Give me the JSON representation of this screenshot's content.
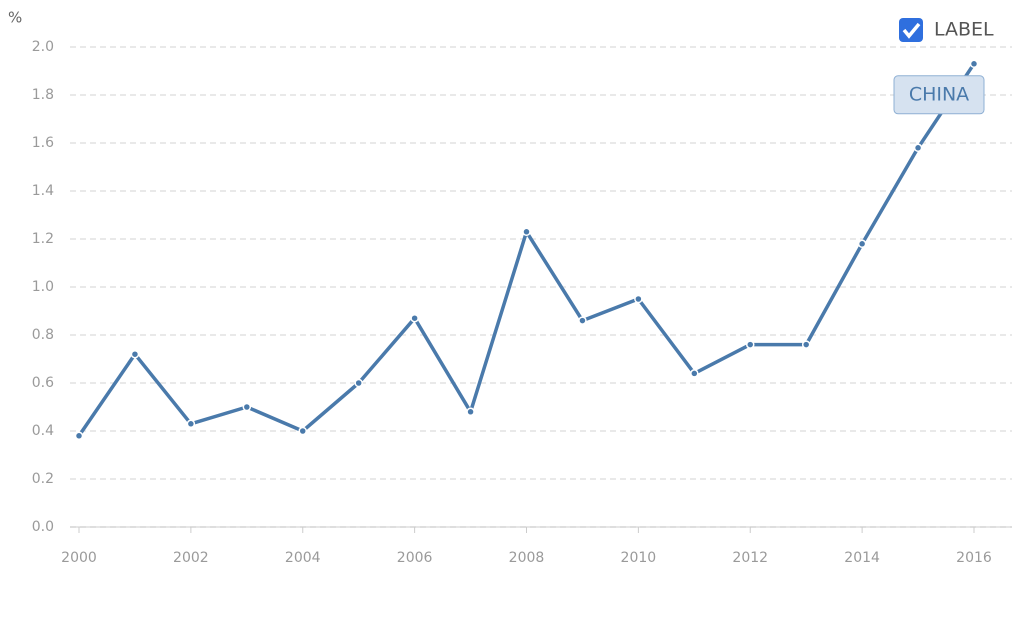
{
  "chart_data": {
    "type": "line",
    "y_label": "%",
    "legend_label": "LABEL",
    "x": [
      2000,
      2001,
      2002,
      2003,
      2004,
      2005,
      2006,
      2007,
      2008,
      2009,
      2010,
      2011,
      2012,
      2013,
      2014,
      2015,
      2016
    ],
    "series": [
      {
        "name": "CHINA",
        "color": "#4a7aab",
        "values": [
          0.38,
          0.72,
          0.43,
          0.5,
          0.4,
          0.6,
          0.87,
          0.48,
          1.23,
          0.86,
          0.95,
          0.64,
          0.76,
          0.76,
          1.18,
          1.58,
          1.93
        ]
      }
    ],
    "xlim": [
      2000,
      2016
    ],
    "xticks": [
      2000,
      2002,
      2004,
      2006,
      2008,
      2010,
      2012,
      2014,
      2016
    ],
    "ylim": [
      0,
      2
    ],
    "yticks": [
      {
        "value": 0,
        "label": "0.0"
      },
      0.2,
      0.4,
      0.6,
      0.8,
      {
        "value": 1,
        "label": "1.0"
      },
      1.2,
      1.4,
      1.6,
      1.8,
      {
        "value": 2,
        "label": "2.0"
      }
    ],
    "grid": true
  }
}
